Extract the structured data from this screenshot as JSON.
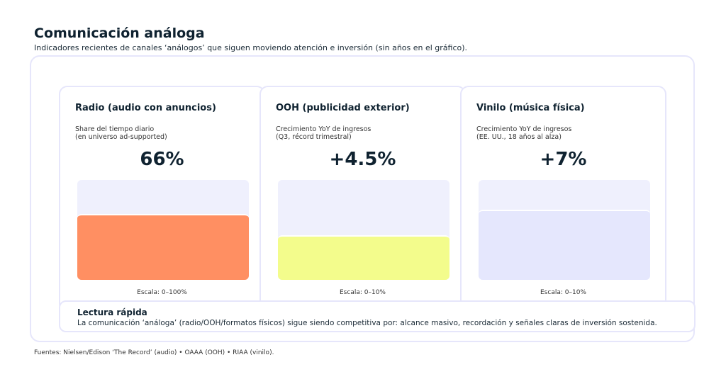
{
  "title": "Comunicación análoga",
  "subtitle": "Indicadores recientes de canales ‘análogos’ que siguen moviendo atención e inversión (sin años en el gráfico).",
  "chart_data": [
    {
      "type": "bar",
      "title": "Radio (audio con anuncios)",
      "subtitle": "Share del tiempo diario\n(en universo ad-supported)",
      "value": 66,
      "value_label": "66%",
      "ylim": [
        0,
        100
      ],
      "scale_label": "Escala: 0–100%",
      "color": "#ff8f62"
    },
    {
      "type": "bar",
      "title": "OOH (publicidad exterior)",
      "subtitle": "Crecimiento YoY de ingresos\n(Q3, récord trimestral)",
      "value": 4.5,
      "value_label": "+4.5%",
      "ylim": [
        0,
        10
      ],
      "scale_label": "Escala: 0–10%",
      "color": "#f3fc8c"
    },
    {
      "type": "bar",
      "title": "Vinilo (música física)",
      "subtitle": "Crecimiento YoY de ingresos\n(EE. UU., 18 años al alza)",
      "value": 7,
      "value_label": "+7%",
      "ylim": [
        0,
        10
      ],
      "scale_label": "Escala: 0–10%",
      "color": "#e5e7fd"
    }
  ],
  "summary": {
    "heading": "Lectura rápida",
    "text": "La comunicación ‘análoga’ (radio/OOH/formatos físicos) sigue siendo competitiva por: alcance masivo, recordación y señales claras de inversión sostenida."
  },
  "sources": "Fuentes: Nielsen/Edison ‘The Record’ (audio) • OAAA (OOH) • RIAA (vinilo)."
}
